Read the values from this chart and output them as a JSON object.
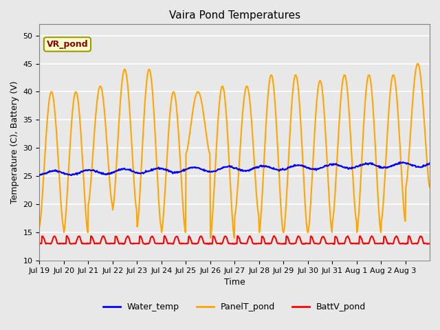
{
  "title": "Vaira Pond Temperatures",
  "xlabel": "Time",
  "ylabel": "Temperature (C), Battery (V)",
  "ylim": [
    10,
    52
  ],
  "yticks": [
    10,
    15,
    20,
    25,
    30,
    35,
    40,
    45,
    50
  ],
  "background_color": "#e8e8e8",
  "annotation_text": "VR_pond",
  "annotation_color": "#8B0000",
  "annotation_bg": "#ffffcc",
  "annotation_edge": "#999900",
  "water_temp_color": "blue",
  "panel_temp_color": "orange",
  "batt_color": "red",
  "n_days": 16,
  "x_tick_labels": [
    "Jul 19",
    "Jul 20",
    "Jul 21",
    "Jul 22",
    "Jul 23",
    "Jul 24",
    "Jul 25",
    "Jul 26",
    "Jul 27",
    "Jul 28",
    "Jul 29",
    "Jul 30",
    "Jul 31",
    "Aug 1",
    "Aug 2",
    "Aug 3"
  ],
  "water_base": 25.5,
  "water_trend": 0.1,
  "panel_mins": [
    16,
    15,
    20,
    19,
    16,
    15,
    29,
    14,
    18,
    15,
    15,
    15,
    17,
    15,
    17,
    23
  ],
  "panel_maxs": [
    40,
    40,
    41,
    44,
    44,
    40,
    40,
    41,
    41,
    43,
    43,
    42,
    43,
    43,
    43,
    45
  ],
  "batt_base": 13.0,
  "samples_per_day": 48
}
